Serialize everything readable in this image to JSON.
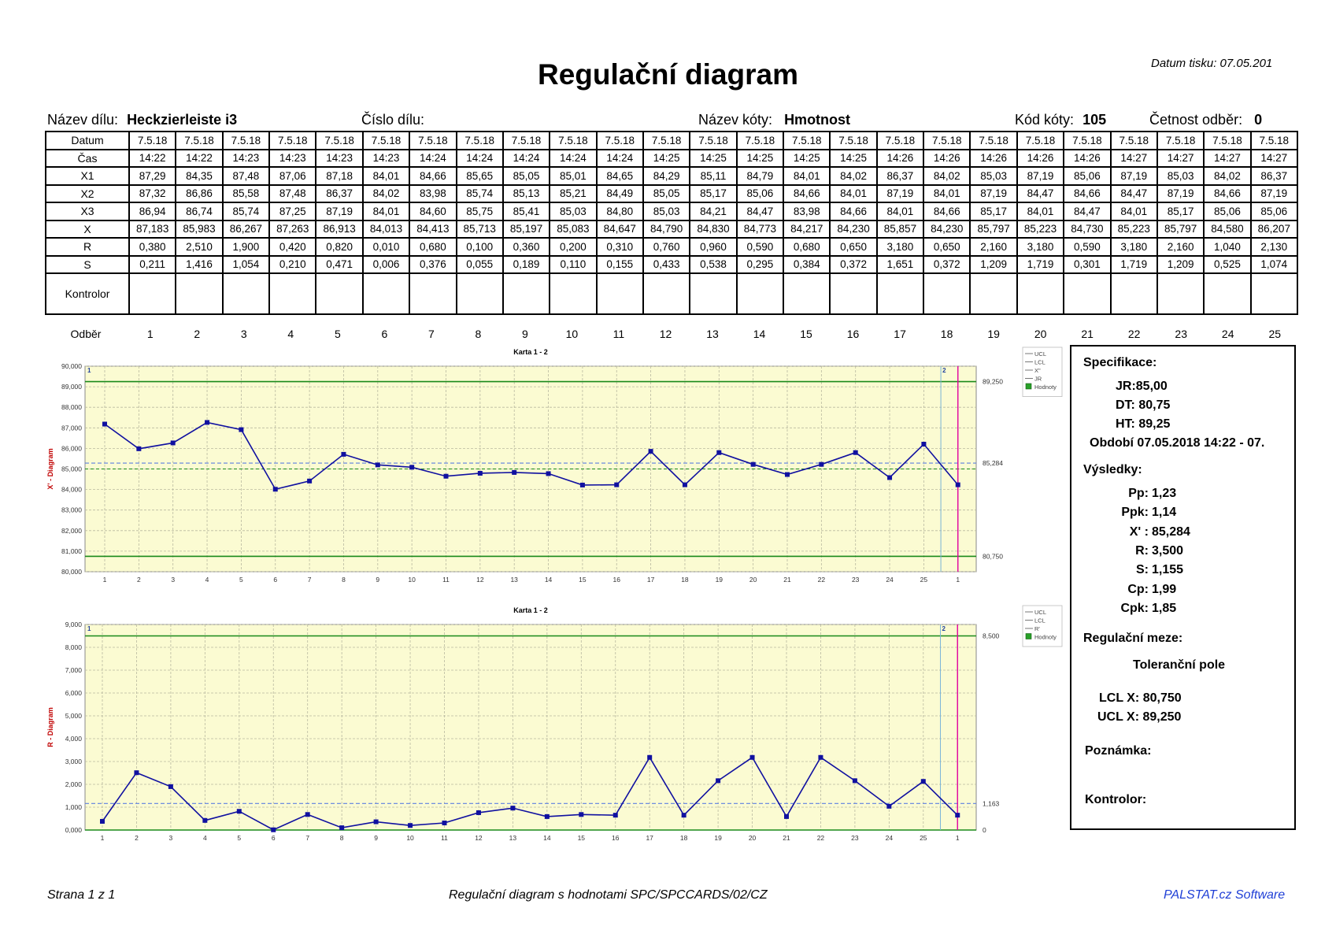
{
  "title": "Regulační diagram",
  "print_date": "Datum tisku: 07.05.201",
  "header": {
    "part_name_label": "Název dílu:",
    "part_name": "Heckzierleiste i3",
    "part_no_label": "Číslo dílu:",
    "dim_name_label": "Název kóty:",
    "dim_name": "Hmotnost",
    "dim_code_label": "Kód kóty:",
    "dim_code": "105",
    "freq_label": "Četnost odběr:",
    "freq": "0"
  },
  "table": {
    "labels": [
      "Datum",
      "Čas",
      "X1",
      "X2",
      "X3",
      "X",
      "R",
      "S",
      "Kontrolor"
    ],
    "odber_label": "Odběr",
    "rows": [
      [
        "7.5.18",
        "7.5.18",
        "7.5.18",
        "7.5.18",
        "7.5.18",
        "7.5.18",
        "7.5.18",
        "7.5.18",
        "7.5.18",
        "7.5.18",
        "7.5.18",
        "7.5.18",
        "7.5.18",
        "7.5.18",
        "7.5.18",
        "7.5.18",
        "7.5.18",
        "7.5.18",
        "7.5.18",
        "7.5.18",
        "7.5.18",
        "7.5.18",
        "7.5.18",
        "7.5.18",
        "7.5.18"
      ],
      [
        "14:22",
        "14:22",
        "14:23",
        "14:23",
        "14:23",
        "14:23",
        "14:24",
        "14:24",
        "14:24",
        "14:24",
        "14:24",
        "14:25",
        "14:25",
        "14:25",
        "14:25",
        "14:25",
        "14:26",
        "14:26",
        "14:26",
        "14:26",
        "14:26",
        "14:27",
        "14:27",
        "14:27",
        "14:27"
      ],
      [
        "87,29",
        "84,35",
        "87,48",
        "87,06",
        "87,18",
        "84,01",
        "84,66",
        "85,65",
        "85,05",
        "85,01",
        "84,65",
        "84,29",
        "85,11",
        "84,79",
        "84,01",
        "84,02",
        "86,37",
        "84,02",
        "85,03",
        "87,19",
        "85,06",
        "87,19",
        "85,03",
        "84,02",
        "86,37"
      ],
      [
        "87,32",
        "86,86",
        "85,58",
        "87,48",
        "86,37",
        "84,02",
        "83,98",
        "85,74",
        "85,13",
        "85,21",
        "84,49",
        "85,05",
        "85,17",
        "85,06",
        "84,66",
        "84,01",
        "87,19",
        "84,01",
        "87,19",
        "84,47",
        "84,66",
        "84,47",
        "87,19",
        "84,66",
        "87,19"
      ],
      [
        "86,94",
        "86,74",
        "85,74",
        "87,25",
        "87,19",
        "84,01",
        "84,60",
        "85,75",
        "85,41",
        "85,03",
        "84,80",
        "85,03",
        "84,21",
        "84,47",
        "83,98",
        "84,66",
        "84,01",
        "84,66",
        "85,17",
        "84,01",
        "84,47",
        "84,01",
        "85,17",
        "85,06",
        "85,06"
      ],
      [
        "87,183",
        "85,983",
        "86,267",
        "87,263",
        "86,913",
        "84,013",
        "84,413",
        "85,713",
        "85,197",
        "85,083",
        "84,647",
        "84,790",
        "84,830",
        "84,773",
        "84,217",
        "84,230",
        "85,857",
        "84,230",
        "85,797",
        "85,223",
        "84,730",
        "85,223",
        "85,797",
        "84,580",
        "86,207"
      ],
      [
        "0,380",
        "2,510",
        "1,900",
        "0,420",
        "0,820",
        "0,010",
        "0,680",
        "0,100",
        "0,360",
        "0,200",
        "0,310",
        "0,760",
        "0,960",
        "0,590",
        "0,680",
        "0,650",
        "3,180",
        "0,650",
        "2,160",
        "3,180",
        "0,590",
        "3,180",
        "2,160",
        "1,040",
        "2,130"
      ],
      [
        "0,211",
        "1,416",
        "1,054",
        "0,210",
        "0,471",
        "0,006",
        "0,376",
        "0,055",
        "0,189",
        "0,110",
        "0,155",
        "0,433",
        "0,538",
        "0,295",
        "0,384",
        "0,372",
        "1,651",
        "0,372",
        "1,209",
        "1,719",
        "0,301",
        "1,719",
        "1,209",
        "0,525",
        "1,074"
      ],
      [
        "",
        "",
        "",
        "",
        "",
        "",
        "",
        "",
        "",
        "",
        "",
        "",
        "",
        "",
        "",
        "",
        "",
        "",
        "",
        "",
        "",
        "",
        "",
        "",
        ""
      ]
    ],
    "odber": [
      "1",
      "2",
      "3",
      "4",
      "5",
      "6",
      "7",
      "8",
      "9",
      "10",
      "11",
      "12",
      "13",
      "14",
      "15",
      "16",
      "17",
      "18",
      "19",
      "20",
      "21",
      "22",
      "23",
      "24",
      "25"
    ]
  },
  "spec": {
    "heading": "Specifikace:",
    "jr": "JR:85,00",
    "dt_label": "DT:",
    "dt": "80,75",
    "ht_label": "HT:",
    "ht": "89,25",
    "period": "Období 07.05.2018 14:22 - 07.",
    "results_heading": "Výsledky:",
    "results": [
      {
        "label": "Pp:",
        "value": "1,23"
      },
      {
        "label": "Ppk:",
        "value": "1,14"
      },
      {
        "label": "X' :",
        "value": "85,284"
      },
      {
        "label": "R:",
        "value": "3,500"
      },
      {
        "label": "S:",
        "value": "1,155"
      },
      {
        "label": "Cp:",
        "value": "1,99"
      },
      {
        "label": "Cpk:",
        "value": "1,85"
      }
    ],
    "limits_heading": "Regulační meze:",
    "tolerance": "Toleranční pole",
    "lcl": "LCL X: 80,750",
    "ucl": "UCL X: 89,250",
    "note": "Poznámka:",
    "controller": "Kontrolor:"
  },
  "footer": {
    "page": "Strana 1 z 1",
    "doc": "Regulační diagram s hodnotami SPC/SPCCARDS/02/CZ",
    "brand": "PALSTAT.cz Software"
  },
  "colors": {
    "plot_bg": "#fbfbd2",
    "series": "#1010a0",
    "limit": "#1a8a1a",
    "center": "#5c7fe0",
    "marker_v": "#e000a0"
  },
  "chart_data": [
    {
      "type": "line",
      "title": "Karta 1 - 2",
      "ylabel": "X' - Diagram",
      "ylim": [
        80,
        90
      ],
      "yticks": [
        "80,000",
        "81,000",
        "82,000",
        "83,000",
        "84,000",
        "85,000",
        "86,000",
        "87,000",
        "88,000",
        "89,000",
        "90,000"
      ],
      "x": [
        "1",
        "2",
        "3",
        "4",
        "5",
        "6",
        "7",
        "8",
        "9",
        "10",
        "11",
        "12",
        "13",
        "14",
        "15",
        "16",
        "17",
        "18",
        "19",
        "20",
        "21",
        "22",
        "23",
        "24",
        "25",
        "1"
      ],
      "values": [
        87.183,
        85.983,
        86.267,
        87.263,
        86.913,
        84.013,
        84.413,
        85.713,
        85.197,
        85.083,
        84.647,
        84.79,
        84.83,
        84.773,
        84.217,
        84.23,
        85.857,
        84.23,
        85.797,
        85.223,
        84.73,
        85.223,
        85.797,
        84.58,
        86.207,
        84.23
      ],
      "ucl": 89.25,
      "lcl": 80.75,
      "center": 85.284,
      "jr": 85.0,
      "ucl_label": "89,250",
      "lcl_label": "80,750",
      "center_label": "85,284",
      "legend": [
        "UCL",
        "LCL",
        "X\"",
        "JR",
        "Hodnoty"
      ],
      "markers": [
        "1",
        "2"
      ]
    },
    {
      "type": "line",
      "title": "Karta 1 - 2",
      "ylabel": "R - Diagram",
      "ylim": [
        0,
        9
      ],
      "yticks": [
        "0,000",
        "1,000",
        "2,000",
        "3,000",
        "4,000",
        "5,000",
        "6,000",
        "7,000",
        "8,000",
        "9,000"
      ],
      "x": [
        "1",
        "2",
        "3",
        "4",
        "5",
        "6",
        "7",
        "8",
        "9",
        "10",
        "11",
        "12",
        "13",
        "14",
        "15",
        "16",
        "17",
        "18",
        "19",
        "20",
        "21",
        "22",
        "23",
        "24",
        "25",
        "1"
      ],
      "values": [
        0.38,
        2.51,
        1.9,
        0.42,
        0.82,
        0.01,
        0.68,
        0.1,
        0.36,
        0.2,
        0.31,
        0.76,
        0.96,
        0.59,
        0.68,
        0.65,
        3.18,
        0.65,
        2.16,
        3.18,
        0.59,
        3.18,
        2.16,
        1.04,
        2.13,
        0.65
      ],
      "ucl": 8.5,
      "lcl": 0,
      "center": 1.163,
      "ucl_label": "8,500",
      "lcl_label": "0",
      "center_label": "1,163",
      "legend": [
        "UCL",
        "LCL",
        "R'",
        "Hodnoty"
      ],
      "markers": [
        "1",
        "2"
      ]
    }
  ]
}
